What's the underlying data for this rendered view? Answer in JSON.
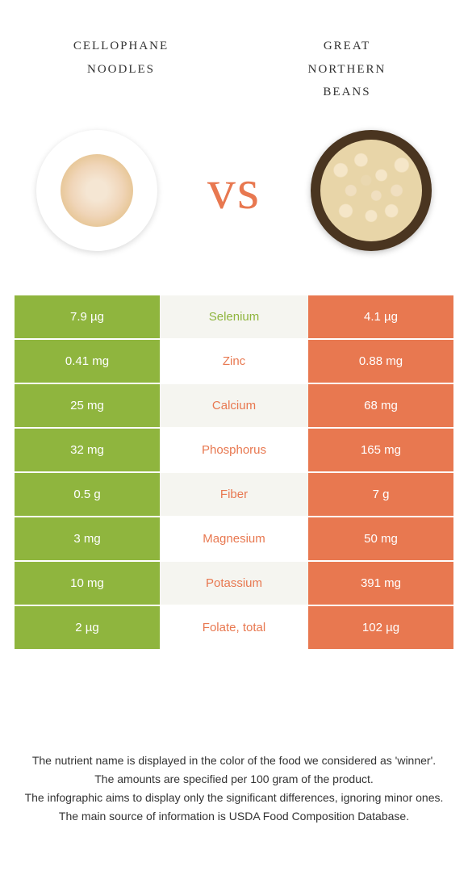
{
  "colors": {
    "left": "#8fb53e",
    "right": "#e87850",
    "mid_bg_even": "#ffffff",
    "mid_bg_odd": "#f5f5f0"
  },
  "food_left": {
    "title_line1": "cellophane",
    "title_line2": "noodles"
  },
  "food_right": {
    "title_line1": "great",
    "title_line2": "northern",
    "title_line3": "beans"
  },
  "vs_label": "vs",
  "rows": [
    {
      "left": "7.9 µg",
      "name": "Selenium",
      "right": "4.1 µg",
      "winner": "left"
    },
    {
      "left": "0.41 mg",
      "name": "Zinc",
      "right": "0.88 mg",
      "winner": "right"
    },
    {
      "left": "25 mg",
      "name": "Calcium",
      "right": "68 mg",
      "winner": "right"
    },
    {
      "left": "32 mg",
      "name": "Phosphorus",
      "right": "165 mg",
      "winner": "right"
    },
    {
      "left": "0.5 g",
      "name": "Fiber",
      "right": "7 g",
      "winner": "right"
    },
    {
      "left": "3 mg",
      "name": "Magnesium",
      "right": "50 mg",
      "winner": "right"
    },
    {
      "left": "10 mg",
      "name": "Potassium",
      "right": "391 mg",
      "winner": "right"
    },
    {
      "left": "2 µg",
      "name": "Folate, total",
      "right": "102 µg",
      "winner": "right"
    }
  ],
  "footer": {
    "l1": "The nutrient name is displayed in the color of the food we considered as 'winner'.",
    "l2": "The amounts are specified per 100 gram of the product.",
    "l3": "The infographic aims to display only the significant differences, ignoring minor ones.",
    "l4": "The main source of information is USDA Food Composition Database."
  }
}
